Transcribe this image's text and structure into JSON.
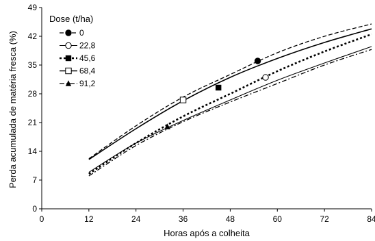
{
  "chart_data": {
    "type": "line",
    "title": "",
    "xlabel": "Horas após a colheita",
    "ylabel": "Perda acumulada de matéria fresca (%)",
    "xlim": [
      0,
      84
    ],
    "ylim": [
      0,
      49
    ],
    "xticks": [
      0,
      12,
      24,
      36,
      48,
      60,
      72,
      84
    ],
    "yticks": [
      0,
      7,
      14,
      21,
      28,
      35,
      42,
      49
    ],
    "xtick_labels": [
      "0",
      "12",
      "24",
      "36",
      "48",
      "60",
      "72",
      "84"
    ],
    "ytick_labels": [
      "0",
      "7",
      "14",
      "21",
      "28",
      "35",
      "42",
      "49"
    ],
    "grid": false,
    "legend": {
      "title": "Dose (t/ha)",
      "placement": "top-left",
      "entries": [
        "0",
        "22,8",
        "45,6",
        "68,4",
        "91,2"
      ]
    },
    "x": [
      12,
      24,
      36,
      48,
      60,
      72,
      84
    ],
    "series": [
      {
        "name": "0",
        "marker": "filled-circle",
        "line": "dashed",
        "values": [
          12.2,
          20.2,
          27.2,
          32.7,
          38.0,
          42.0,
          45.0
        ],
        "marker_point": [
          55,
          36
        ]
      },
      {
        "name": "22,8",
        "marker": "open-circle",
        "line": "solid-thin",
        "values": [
          8.9,
          16.0,
          21.5,
          26.5,
          31.3,
          35.5,
          39.5
        ],
        "marker_point": [
          57,
          32
        ]
      },
      {
        "name": "45,6",
        "marker": "filled-square",
        "line": "dotted-bold",
        "values": [
          8.5,
          16.0,
          22.5,
          28.0,
          33.5,
          38.3,
          42.5
        ],
        "marker_point": [
          45,
          29.5
        ]
      },
      {
        "name": "68,4",
        "marker": "open-square",
        "line": "solid-bold",
        "values": [
          12.0,
          19.5,
          26.3,
          32.0,
          36.6,
          40.5,
          43.8
        ],
        "marker_point": [
          36,
          26.5
        ]
      },
      {
        "name": "91,2",
        "marker": "filled-triangle",
        "line": "dash-dot",
        "values": [
          8.0,
          15.4,
          21.2,
          26.0,
          30.5,
          35.0,
          38.8
        ],
        "marker_point": [
          32,
          20
        ]
      }
    ]
  }
}
